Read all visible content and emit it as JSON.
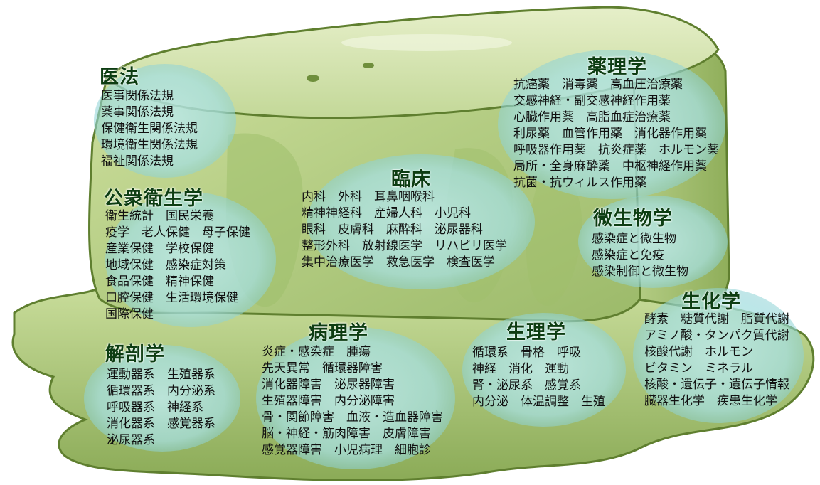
{
  "sections": {
    "ihou": {
      "title": "医法",
      "lines": [
        "医事関係法規",
        "薬事関係法規",
        "保健衛生関係法規",
        "環境衛生関係法規",
        "福祉関係法規"
      ]
    },
    "koushu": {
      "title": "公衆衛生学",
      "lines": [
        "衛生統計　国民栄養",
        "疫学　老人保健　母子保健",
        "産業保健　学校保健",
        "地域保健　感染症対策",
        "食品保健　精神保健",
        "口腔保健　生活環境保健",
        "国際保健"
      ]
    },
    "kaibou": {
      "title": "解剖学",
      "lines": [
        "運動器系　生殖器系",
        "循環器系　内分泌系",
        "呼吸器系　神経系",
        "消化器系　感覚器系",
        "泌尿器系"
      ]
    },
    "rinsho": {
      "title": "臨床",
      "lines": [
        "内科　外科　耳鼻咽喉科",
        "精神神経科　産婦人科　小児科",
        "眼科　皮膚科　麻酔科　泌尿器科",
        "整形外科　放射線医学　リハビリ医学",
        "集中治療医学　救急医学　検査医学"
      ]
    },
    "byouri": {
      "title": "病理学",
      "lines": [
        "炎症・感染症　腫瘍",
        "先天異常　循環器障害",
        "消化器障害　泌尿器障害",
        "生殖器障害　内分泌障害",
        "骨・関節障害　血液・造血器障害",
        "脳・神経・筋肉障害　皮膚障害",
        "感覚器障害　小児病理　細胞診"
      ]
    },
    "yakuri": {
      "title": "薬理学",
      "lines": [
        "抗癌薬　消毒薬　高血圧治療薬",
        "交感神経・副交感神経作用薬",
        "心臓作用薬　高脂血症治療薬",
        "利尿薬　血管作用薬　消化器作用薬",
        "呼吸器作用薬　抗炎症薬　ホルモン薬",
        "局所・全身麻酔薬　中枢神経作用薬",
        "抗菌・抗ウィルス作用薬"
      ]
    },
    "biseibutsu": {
      "title": "微生物学",
      "lines": [
        "感染症と微生物",
        "感染症と免疫",
        "感染制御と微生物"
      ]
    },
    "seiri": {
      "title": "生理学",
      "lines": [
        "循環系　骨格　呼吸",
        "神経　消化　運動",
        "腎・泌尿系　感覚系",
        "内分泌　体温調整　生殖"
      ]
    },
    "seika": {
      "title": "生化学",
      "lines": [
        "酵素　糖質代謝　脂質代謝",
        "アミノ酸・タンパク質代謝",
        "核酸代謝　ホルモン",
        "ビタミン　ミネラル",
        "核酸・遺伝子・遺伝子情報",
        "臓器生化学　疾患生化学"
      ]
    }
  },
  "colors": {
    "jelly_light": "#d9e8b3",
    "jelly_mid": "#b6cf83",
    "jelly_dark": "#6f8f3c",
    "bubble": "#9fdde0",
    "heading": "#0d3d12"
  }
}
